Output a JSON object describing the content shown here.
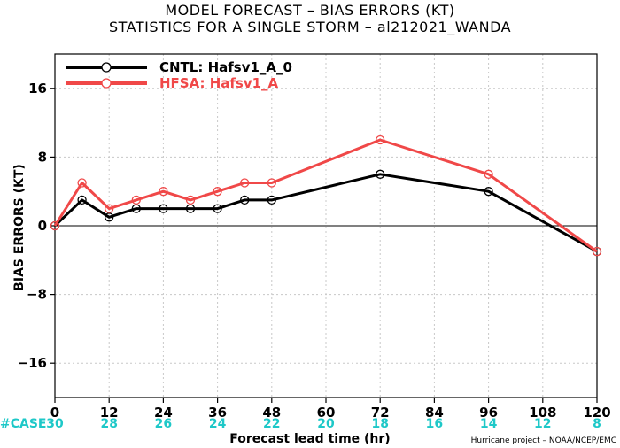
{
  "title_line1": "MODEL FORECAST – BIAS ERRORS (KT)",
  "title_line2": "STATISTICS FOR A SINGLE STORM – al212021_WANDA",
  "credit": "Hurricane project – NOAA/NCEP/EMC",
  "case_prefix": "#CASE",
  "colors": {
    "cntl": "#000000",
    "hfsa": "#f04848",
    "cases": "#1ec8c8",
    "grid": "#c8c8c8"
  },
  "chart_data": {
    "type": "line",
    "xlabel": "Forecast lead time (hr)",
    "ylabel": "BIAS ERRORS (KT)",
    "xlim": [
      0,
      120
    ],
    "ylim": [
      -20,
      20
    ],
    "x_ticks": [
      0,
      12,
      24,
      36,
      48,
      60,
      72,
      84,
      96,
      108,
      120
    ],
    "y_ticks": [
      -16,
      -8,
      0,
      8,
      16
    ],
    "grid": true,
    "legend_position": "top-left",
    "cases": [
      {
        "x": 0,
        "n": 30
      },
      {
        "x": 12,
        "n": 28
      },
      {
        "x": 24,
        "n": 26
      },
      {
        "x": 36,
        "n": 24
      },
      {
        "x": 48,
        "n": 22
      },
      {
        "x": 60,
        "n": 20
      },
      {
        "x": 72,
        "n": 18
      },
      {
        "x": 84,
        "n": 16
      },
      {
        "x": 96,
        "n": 14
      },
      {
        "x": 108,
        "n": 12
      },
      {
        "x": 120,
        "n": 8
      }
    ],
    "series": [
      {
        "name": "CNTL: Hafsv1_A_0",
        "color": "#000000",
        "x": [
          0,
          6,
          12,
          18,
          24,
          30,
          36,
          42,
          48,
          72,
          96,
          120
        ],
        "y": [
          0,
          3,
          1,
          2,
          2,
          2,
          2,
          3,
          3,
          6,
          4,
          -3
        ]
      },
      {
        "name": "HFSA: Hafsv1_A",
        "color": "#f04848",
        "x": [
          0,
          6,
          12,
          18,
          24,
          30,
          36,
          42,
          48,
          72,
          96,
          120
        ],
        "y": [
          0,
          5,
          2,
          3,
          4,
          3,
          4,
          5,
          5,
          10,
          6,
          -3
        ]
      }
    ]
  }
}
